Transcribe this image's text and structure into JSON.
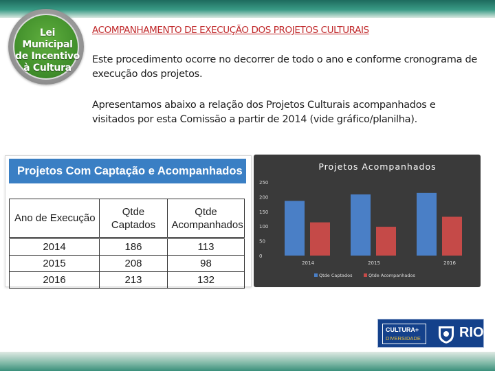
{
  "logo": {
    "lines": [
      "Lei Municipal",
      "de Incentivo",
      "à Cultura"
    ]
  },
  "heading": "ACOMPANHAMENTO DE EXECUÇÃO DOS PROJETOS CULTURAIS",
  "paragraphs": [
    "Este procedimento ocorre no decorrer de todo o ano e conforme cronograma de execução dos projetos.",
    "Apresentamos abaixo a relação dos Projetos Culturais acompanhados e visitados por esta Comissão a partir de 2014 (vide gráfico/planilha)."
  ],
  "table": {
    "title": "Projetos Com Captação e Acompanhados",
    "headers": [
      "Ano de Execução",
      "Qtde Captados",
      "Qtde Acompanhados"
    ],
    "rows": [
      [
        "2014",
        "186",
        "113"
      ],
      [
        "2015",
        "208",
        "98"
      ],
      [
        "2016",
        "213",
        "132"
      ]
    ]
  },
  "chart_data": {
    "type": "bar",
    "title": "Projetos Acompanhados",
    "categories": [
      "2014",
      "2015",
      "2016"
    ],
    "series": [
      {
        "name": "Qtde Captados",
        "values": [
          186,
          208,
          213
        ],
        "color": "#4a7fc6"
      },
      {
        "name": "Qtde Acompanhados",
        "values": [
          113,
          98,
          132
        ],
        "color": "#c54a48"
      }
    ],
    "yticks": [
      0,
      50,
      100,
      150,
      200,
      250
    ],
    "ylim": [
      0,
      250
    ],
    "legend": "bottom",
    "grid": false,
    "background": "#3a3a3a"
  },
  "footer_logo": {
    "box_line1": "CULTURA+",
    "box_line2": "DIVERSIDADE",
    "city": "RIO"
  }
}
